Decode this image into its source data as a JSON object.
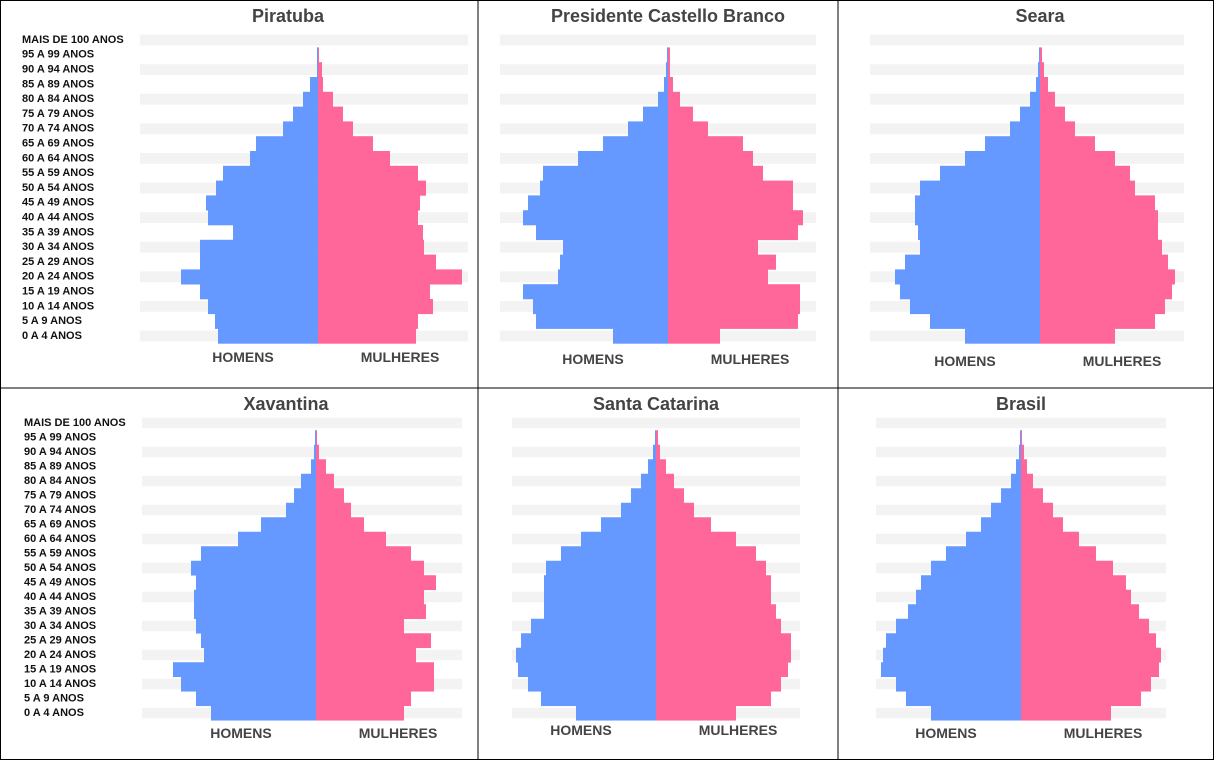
{
  "chart_data": [
    {
      "type": "pyramid",
      "title": "Piratuba",
      "categories": [
        "MAIS DE 100 ANOS",
        "95 A 99 ANOS",
        "90 A 94 ANOS",
        "85 A 89 ANOS",
        "80 A 84 ANOS",
        "75 A 79 ANOS",
        "70 A 74 ANOS",
        "65 A 69 ANOS",
        "60 A 64 ANOS",
        "55 A 59 ANOS",
        "50 A 54 ANOS",
        "45 A 49 ANOS",
        "40 A 44 ANOS",
        "35 A 39 ANOS",
        "30 A 34 ANOS",
        "25 A 29 ANOS",
        "20 A 24 ANOS",
        "15 A 19 ANOS",
        "10 A 14 ANOS",
        "5 A 9 ANOS",
        "0 A 4 ANOS"
      ],
      "series": [
        {
          "name": "HOMENS",
          "color": "#6699ff",
          "values": [
            0,
            1,
            1,
            8,
            15,
            25,
            35,
            62,
            68,
            95,
            102,
            112,
            110,
            85,
            118,
            118,
            137,
            118,
            110,
            103,
            100
          ]
        },
        {
          "name": "MULHERES",
          "color": "#ff6699",
          "values": [
            0,
            1,
            4,
            5,
            15,
            25,
            35,
            55,
            72,
            100,
            108,
            102,
            100,
            105,
            106,
            118,
            144,
            112,
            115,
            100,
            98
          ]
        }
      ]
    },
    {
      "type": "pyramid",
      "title": "Presidente Castello Branco",
      "series": [
        {
          "name": "HOMENS",
          "color": "#6699ff",
          "values": [
            0,
            1,
            2,
            4,
            10,
            25,
            40,
            65,
            90,
            125,
            128,
            140,
            145,
            132,
            105,
            108,
            110,
            145,
            135,
            132,
            55
          ]
        },
        {
          "name": "MULHERES",
          "color": "#ff6699",
          "values": [
            0,
            2,
            2,
            5,
            12,
            25,
            40,
            75,
            85,
            95,
            125,
            125,
            135,
            130,
            90,
            108,
            100,
            132,
            132,
            130,
            52
          ]
        }
      ]
    },
    {
      "type": "pyramid",
      "title": "Seara",
      "series": [
        {
          "name": "HOMENS",
          "color": "#6699ff",
          "values": [
            0,
            1,
            2,
            4,
            10,
            20,
            30,
            55,
            75,
            100,
            120,
            125,
            125,
            122,
            120,
            135,
            145,
            140,
            130,
            110,
            75
          ]
        },
        {
          "name": "MULHERES",
          "color": "#ff6699",
          "values": [
            0,
            2,
            4,
            8,
            15,
            25,
            35,
            55,
            75,
            90,
            95,
            115,
            118,
            118,
            122,
            128,
            135,
            132,
            125,
            115,
            75
          ]
        }
      ]
    },
    {
      "type": "pyramid",
      "title": "Xavantina",
      "categories": [
        "MAIS DE 100 ANOS",
        "95 A 99 ANOS",
        "90 A 94 ANOS",
        "85 A 89 ANOS",
        "80 A 84 ANOS",
        "75 A 79 ANOS",
        "70 A 74 ANOS",
        "65 A 69 ANOS",
        "60 A 64 ANOS",
        "55 A 59 ANOS",
        "50 A 54 ANOS",
        "45 A 49 ANOS",
        "40 A 44 ANOS",
        "35 A 39 ANOS",
        "30 A 34 ANOS",
        "25 A 29 ANOS",
        "20 A 24 ANOS",
        "15 A 19 ANOS",
        "10 A 14 ANOS",
        "5 A 9 ANOS",
        "0 A 4 ANOS"
      ],
      "series": [
        {
          "name": "HOMENS",
          "color": "#6699ff",
          "values": [
            0,
            1,
            2,
            5,
            15,
            22,
            30,
            55,
            78,
            115,
            125,
            120,
            122,
            122,
            120,
            115,
            112,
            143,
            135,
            120,
            105
          ]
        },
        {
          "name": "MULHERES",
          "color": "#ff6699",
          "values": [
            0,
            1,
            3,
            10,
            18,
            28,
            35,
            48,
            70,
            95,
            108,
            120,
            108,
            110,
            88,
            115,
            100,
            118,
            118,
            95,
            88
          ]
        }
      ]
    },
    {
      "type": "pyramid",
      "title": "Santa Catarina",
      "series": [
        {
          "name": "HOMENS",
          "color": "#6699ff",
          "values": [
            0,
            1,
            3,
            8,
            15,
            25,
            35,
            55,
            75,
            95,
            110,
            112,
            112,
            112,
            125,
            135,
            140,
            138,
            128,
            115,
            80
          ]
        },
        {
          "name": "MULHERES",
          "color": "#ff6699",
          "values": [
            0,
            2,
            4,
            10,
            18,
            28,
            38,
            55,
            80,
            100,
            110,
            115,
            115,
            120,
            125,
            135,
            135,
            132,
            125,
            115,
            80
          ]
        }
      ]
    },
    {
      "type": "pyramid",
      "title": "Brasil",
      "series": [
        {
          "name": "HOMENS",
          "color": "#6699ff",
          "values": [
            0,
            1,
            2,
            5,
            10,
            20,
            30,
            40,
            55,
            75,
            90,
            100,
            105,
            113,
            125,
            135,
            138,
            140,
            125,
            115,
            90
          ]
        },
        {
          "name": "MULHERES",
          "color": "#ff6699",
          "values": [
            0,
            1,
            3,
            6,
            12,
            22,
            32,
            42,
            58,
            75,
            92,
            105,
            110,
            118,
            128,
            135,
            140,
            138,
            130,
            120,
            90
          ]
        }
      ]
    }
  ]
}
